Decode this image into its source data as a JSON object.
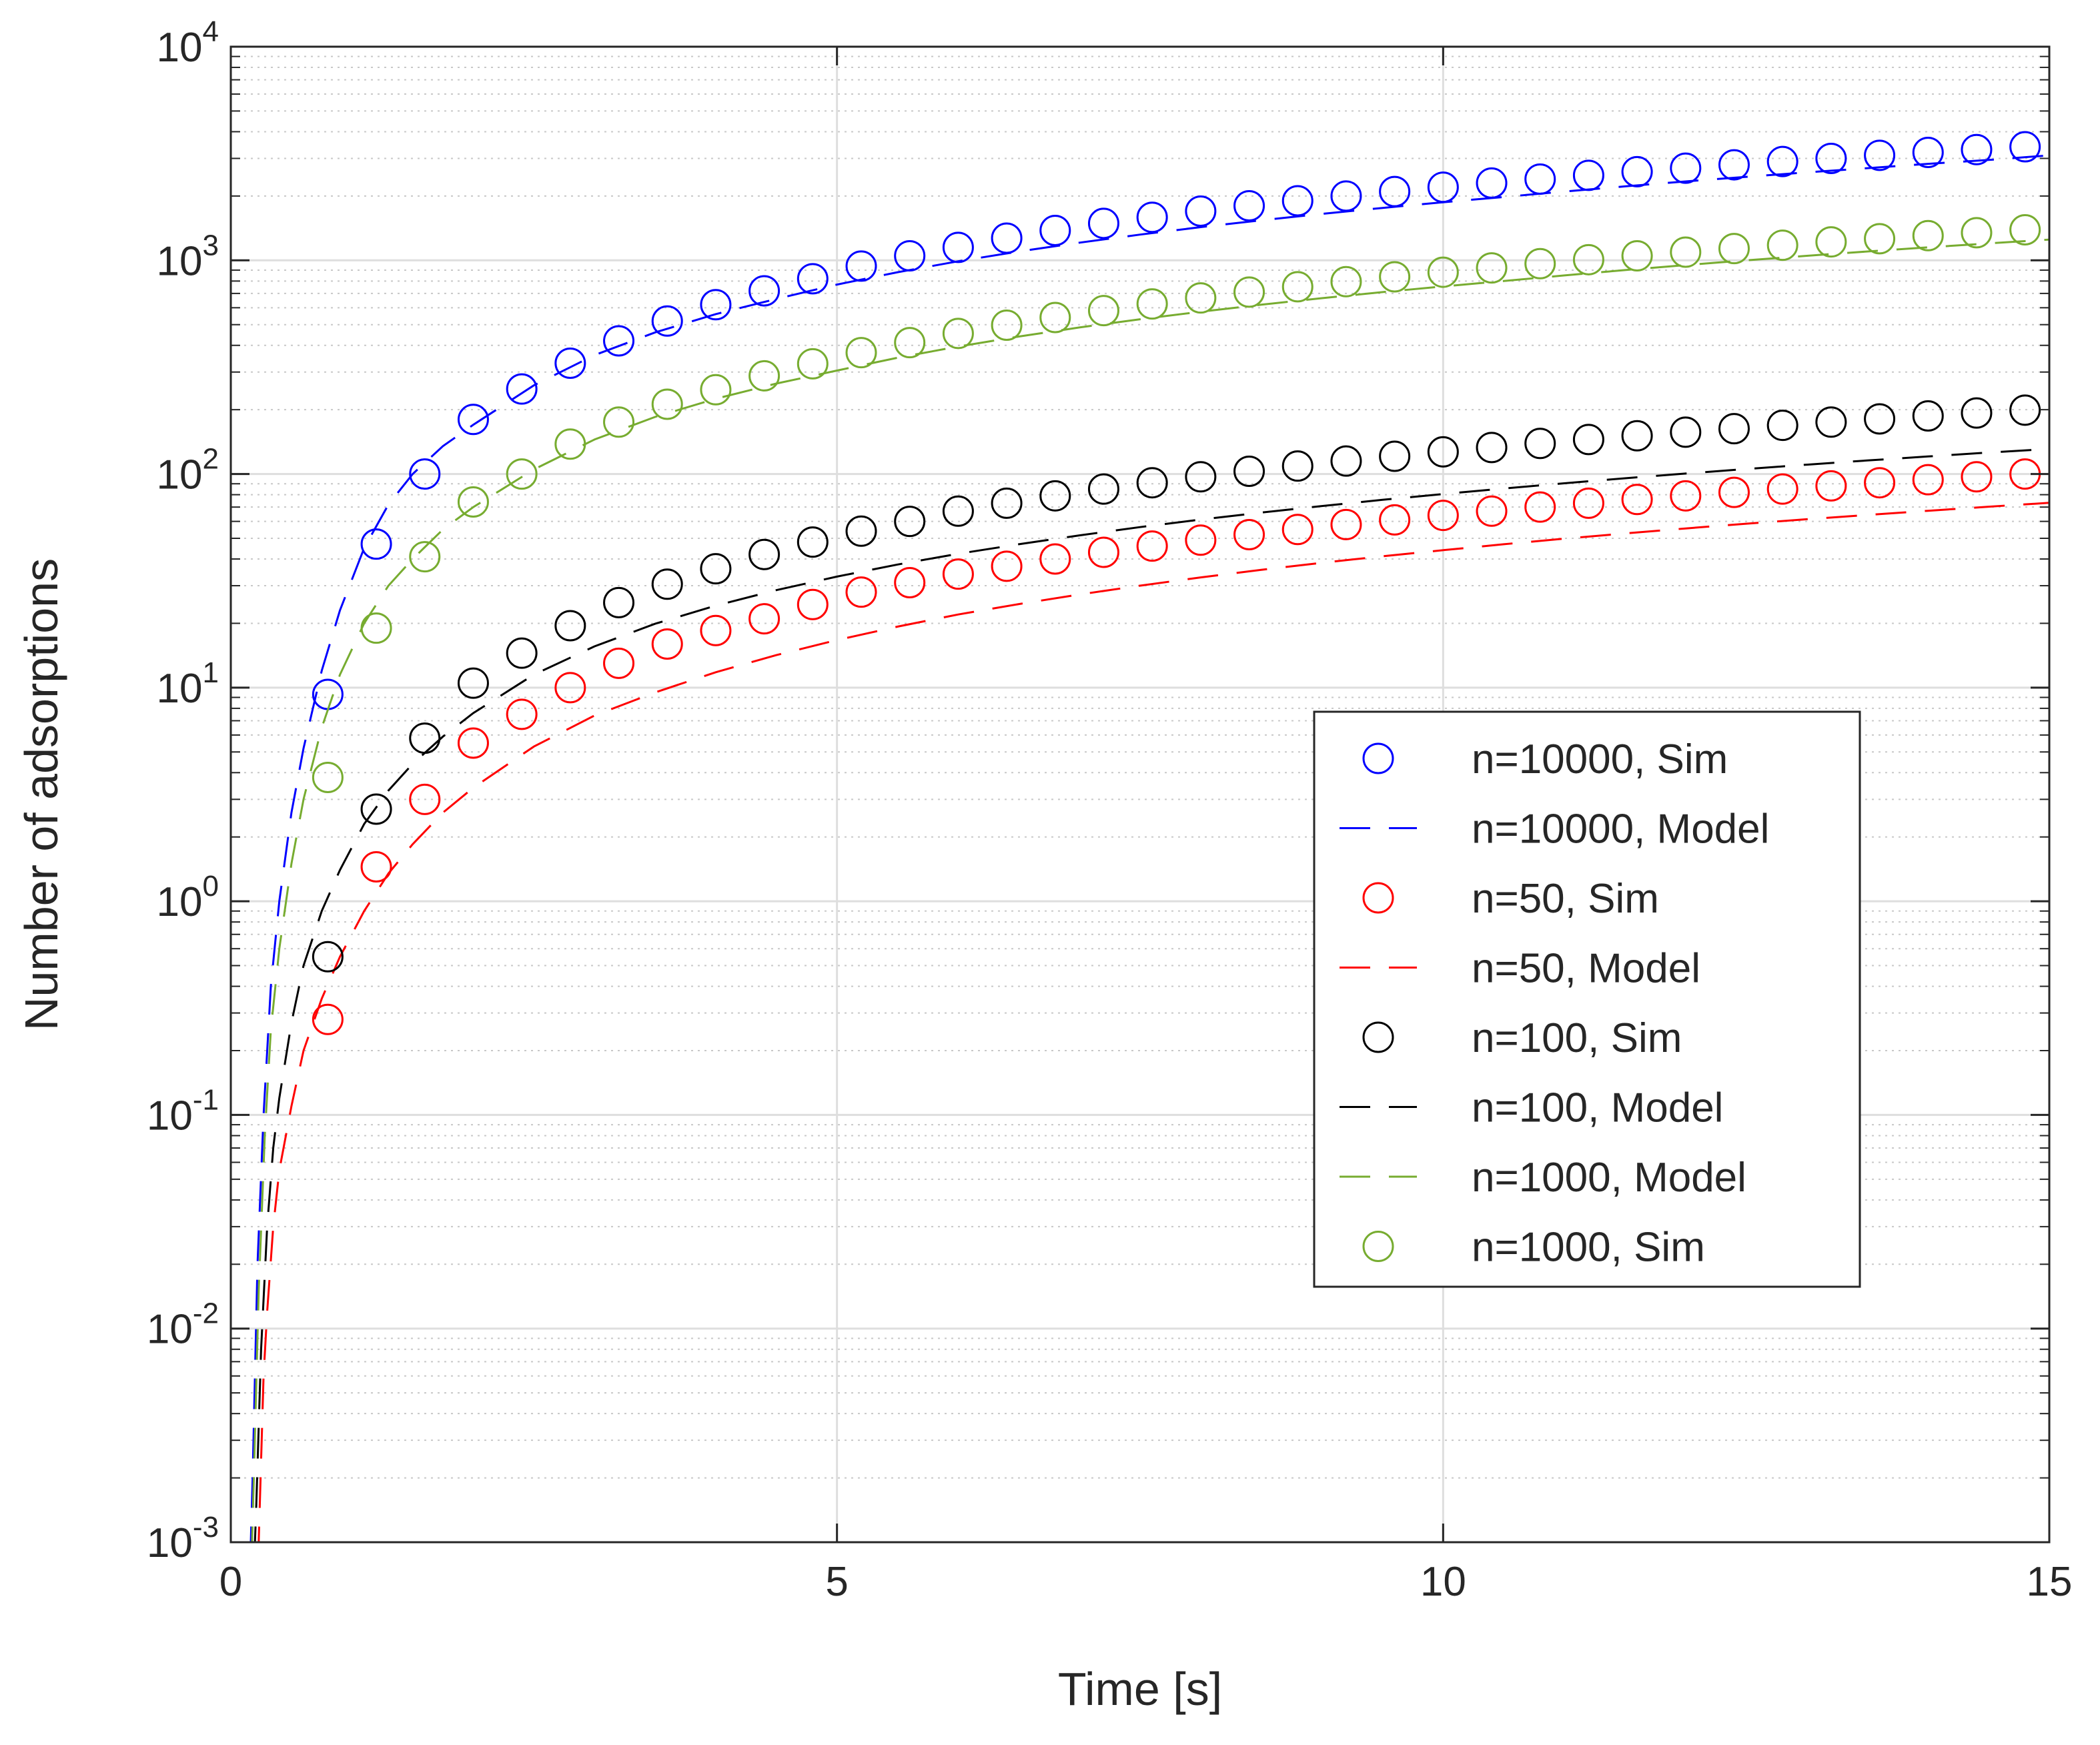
{
  "chart_data": {
    "type": "line",
    "title": "",
    "xlabel": "Time [s]",
    "ylabel": "Number of adsorptions",
    "xlim": [
      0,
      15
    ],
    "ylim": [
      0.001,
      10000
    ],
    "yscale": "log",
    "grid": true,
    "minor_grid": true,
    "legend_position": "right-center",
    "x_ticks": [
      {
        "value": 0,
        "label": "0"
      },
      {
        "value": 5,
        "label": "5"
      },
      {
        "value": 10,
        "label": "10"
      },
      {
        "value": 15,
        "label": "15"
      }
    ],
    "y_ticks": [
      {
        "value": 0.001,
        "base": "10",
        "exp": "-3"
      },
      {
        "value": 0.01,
        "base": "10",
        "exp": "-2"
      },
      {
        "value": 0.1,
        "base": "10",
        "exp": "-1"
      },
      {
        "value": 1,
        "base": "10",
        "exp": "0"
      },
      {
        "value": 10,
        "base": "10",
        "exp": "1"
      },
      {
        "value": 100,
        "base": "10",
        "exp": "2"
      },
      {
        "value": 1000,
        "base": "10",
        "exp": "3"
      },
      {
        "value": 10000,
        "base": "10",
        "exp": "4"
      }
    ],
    "legend": [
      {
        "name": "n=10000, Sim",
        "series": 0
      },
      {
        "name": "n=10000, Model",
        "series": 1
      },
      {
        "name": "n=50, Sim",
        "series": 2
      },
      {
        "name": "n=50, Model",
        "series": 3
      },
      {
        "name": "n=100, Sim",
        "series": 4
      },
      {
        "name": "n=100, Model",
        "series": 5
      },
      {
        "name": "n=1000, Model",
        "series": 6
      },
      {
        "name": "n=1000, Sim",
        "series": 7
      }
    ],
    "series": [
      {
        "name": "n=10000, Sim",
        "kind": "markers",
        "color": "#0000ff",
        "x": [
          0.8,
          1.2,
          1.6,
          2.0,
          2.4,
          2.8,
          3.2,
          3.6,
          4.0,
          4.4,
          4.8,
          5.2,
          5.6,
          6.0,
          6.4,
          6.8,
          7.2,
          7.6,
          8.0,
          8.4,
          8.8,
          9.2,
          9.6,
          10.0,
          10.4,
          10.8,
          11.2,
          11.6,
          12.0,
          12.4,
          12.8,
          13.2,
          13.6,
          14.0,
          14.4,
          14.8
        ],
        "y": [
          9.3,
          47,
          100,
          180,
          250,
          330,
          420,
          520,
          620,
          720,
          820,
          940,
          1050,
          1150,
          1270,
          1380,
          1490,
          1590,
          1700,
          1800,
          1900,
          2000,
          2100,
          2200,
          2300,
          2400,
          2500,
          2600,
          2700,
          2800,
          2900,
          3000,
          3100,
          3200,
          3300,
          3400
        ]
      },
      {
        "name": "n=10000, Model",
        "kind": "line",
        "color": "#0000ff",
        "x": [
          0.15,
          0.18,
          0.22,
          0.27,
          0.33,
          0.4,
          0.5,
          0.6,
          0.75,
          0.9,
          1.1,
          1.3,
          1.5,
          1.75,
          2.0,
          2.5,
          3.0,
          3.5,
          4.0,
          4.5,
          5.0,
          5.5,
          6.0,
          6.5,
          7.0,
          7.5,
          8.0,
          8.5,
          9.0,
          9.5,
          10.0,
          10.5,
          11.0,
          11.5,
          12.0,
          12.5,
          13.0,
          13.5,
          14.0,
          14.5,
          15.0
        ],
        "y": [
          0.0005,
          0.002,
          0.02,
          0.1,
          0.4,
          1.0,
          2.6,
          5.2,
          12,
          23,
          45,
          72,
          100,
          135,
          170,
          260,
          360,
          460,
          560,
          660,
          770,
          880,
          990,
          1100,
          1210,
          1320,
          1430,
          1540,
          1650,
          1760,
          1870,
          1980,
          2100,
          2220,
          2340,
          2460,
          2580,
          2700,
          2830,
          2950,
          3100
        ]
      },
      {
        "name": "n=50, Sim",
        "kind": "markers",
        "color": "#ff0000",
        "x": [
          0.8,
          1.2,
          1.6,
          2.0,
          2.4,
          2.8,
          3.2,
          3.6,
          4.0,
          4.4,
          4.8,
          5.2,
          5.6,
          6.0,
          6.4,
          6.8,
          7.2,
          7.6,
          8.0,
          8.4,
          8.8,
          9.2,
          9.6,
          10.0,
          10.4,
          10.8,
          11.2,
          11.6,
          12.0,
          12.4,
          12.8,
          13.2,
          13.6,
          14.0,
          14.4,
          14.8
        ],
        "y": [
          0.28,
          1.45,
          3.0,
          5.5,
          7.5,
          10,
          13,
          16,
          18.5,
          21,
          24.5,
          28,
          31,
          34,
          37,
          40,
          43,
          46,
          49,
          52,
          55,
          58,
          61,
          64,
          67,
          70,
          73,
          76,
          79,
          82,
          85,
          88,
          91,
          94,
          97,
          100
        ]
      },
      {
        "name": "n=50, Model",
        "kind": "line",
        "color": "#ff0000",
        "x": [
          0.2,
          0.23,
          0.27,
          0.3,
          0.35,
          0.4,
          0.5,
          0.6,
          0.75,
          0.9,
          1.1,
          1.3,
          1.5,
          1.75,
          2.0,
          2.5,
          3.0,
          3.5,
          4.0,
          4.5,
          5.0,
          5.5,
          6.0,
          6.5,
          7.0,
          7.5,
          8.0,
          8.5,
          9.0,
          9.5,
          10.0,
          10.5,
          11.0,
          11.5,
          12.0,
          12.5,
          13.0,
          13.5,
          14.0,
          14.5,
          15.0
        ],
        "y": [
          0.0005,
          0.001,
          0.006,
          0.012,
          0.03,
          0.055,
          0.11,
          0.2,
          0.35,
          0.55,
          0.9,
          1.35,
          1.85,
          2.6,
          3.4,
          5.3,
          7.4,
          9.5,
          11.8,
          14.2,
          16.7,
          19.3,
          22,
          24.6,
          27.3,
          30,
          32.8,
          35.6,
          38.4,
          41.2,
          44,
          46.9,
          49.8,
          52.7,
          55.6,
          58.5,
          61.4,
          64.3,
          67.3,
          70.3,
          73.3
        ]
      },
      {
        "name": "n=100, Sim",
        "kind": "markers",
        "color": "#000000",
        "x": [
          0.8,
          1.2,
          1.6,
          2.0,
          2.4,
          2.8,
          3.2,
          3.6,
          4.0,
          4.4,
          4.8,
          5.2,
          5.6,
          6.0,
          6.4,
          6.8,
          7.2,
          7.6,
          8.0,
          8.4,
          8.8,
          9.2,
          9.6,
          10.0,
          10.4,
          10.8,
          11.2,
          11.6,
          12.0,
          12.4,
          12.8,
          13.2,
          13.6,
          14.0,
          14.4,
          14.8
        ],
        "y": [
          0.55,
          2.7,
          5.8,
          10.5,
          14.5,
          19.5,
          25,
          30.5,
          36,
          42,
          48,
          54,
          60,
          67,
          73,
          79,
          85,
          91,
          97,
          103,
          109,
          115,
          121,
          127,
          133,
          139,
          145,
          151,
          157,
          163,
          169,
          175,
          181,
          187,
          193,
          199
        ]
      },
      {
        "name": "n=100, Model",
        "kind": "line",
        "color": "#000000",
        "x": [
          0.18,
          0.21,
          0.25,
          0.3,
          0.35,
          0.4,
          0.5,
          0.6,
          0.75,
          0.9,
          1.1,
          1.3,
          1.5,
          1.75,
          2.0,
          2.5,
          3.0,
          3.5,
          4.0,
          4.5,
          5.0,
          5.5,
          6.0,
          6.5,
          7.0,
          7.5,
          8.0,
          8.5,
          9.0,
          9.5,
          10.0,
          10.5,
          11.0,
          11.5,
          12.0,
          12.5,
          13.0,
          13.5,
          14.0,
          14.5,
          15.0
        ],
        "y": [
          0.0005,
          0.0015,
          0.008,
          0.03,
          0.07,
          0.12,
          0.27,
          0.5,
          0.9,
          1.4,
          2.3,
          3.3,
          4.4,
          5.9,
          7.6,
          11.5,
          15.6,
          19.9,
          24.2,
          28.6,
          33.1,
          37.7,
          42.3,
          46.9,
          51.6,
          56.4,
          61.2,
          66,
          70.8,
          75.7,
          80.6,
          85.5,
          90.5,
          95.5,
          100.5,
          105.5,
          110.6,
          115.7,
          120.8,
          126,
          131
        ]
      },
      {
        "name": "n=1000, Model",
        "kind": "line",
        "color": "#77ac30",
        "x": [
          0.16,
          0.19,
          0.23,
          0.28,
          0.33,
          0.4,
          0.5,
          0.6,
          0.75,
          0.9,
          1.1,
          1.3,
          1.5,
          1.75,
          2.0,
          2.5,
          3.0,
          3.5,
          4.0,
          4.5,
          5.0,
          5.5,
          6.0,
          6.5,
          7.0,
          7.5,
          8.0,
          8.5,
          9.0,
          9.5,
          10.0,
          10.5,
          11.0,
          11.5,
          12.0,
          12.5,
          13.0,
          13.5,
          14.0,
          14.5,
          15.0
        ],
        "y": [
          0.0005,
          0.002,
          0.015,
          0.08,
          0.25,
          0.6,
          1.5,
          3.0,
          6.5,
          11.5,
          20,
          30,
          40,
          55,
          70,
          105,
          145,
          185,
          225,
          265,
          305,
          350,
          395,
          440,
          485,
          530,
          575,
          620,
          665,
          710,
          755,
          800,
          850,
          900,
          950,
          1000,
          1050,
          1100,
          1150,
          1200,
          1250
        ]
      },
      {
        "name": "n=1000, Sim",
        "kind": "markers",
        "color": "#77ac30",
        "x": [
          0.8,
          1.2,
          1.6,
          2.0,
          2.4,
          2.8,
          3.2,
          3.6,
          4.0,
          4.4,
          4.8,
          5.2,
          5.6,
          6.0,
          6.4,
          6.8,
          7.2,
          7.6,
          8.0,
          8.4,
          8.8,
          9.2,
          9.6,
          10.0,
          10.4,
          10.8,
          11.2,
          11.6,
          12.0,
          12.4,
          12.8,
          13.2,
          13.6,
          14.0,
          14.4,
          14.8
        ],
        "y": [
          3.8,
          19,
          41,
          74,
          100,
          138,
          175,
          212,
          248,
          288,
          328,
          370,
          412,
          455,
          497,
          540,
          582,
          625,
          667,
          710,
          752,
          795,
          837,
          880,
          922,
          965,
          1007,
          1050,
          1092,
          1135,
          1177,
          1220,
          1262,
          1305,
          1347,
          1390
        ]
      }
    ]
  }
}
